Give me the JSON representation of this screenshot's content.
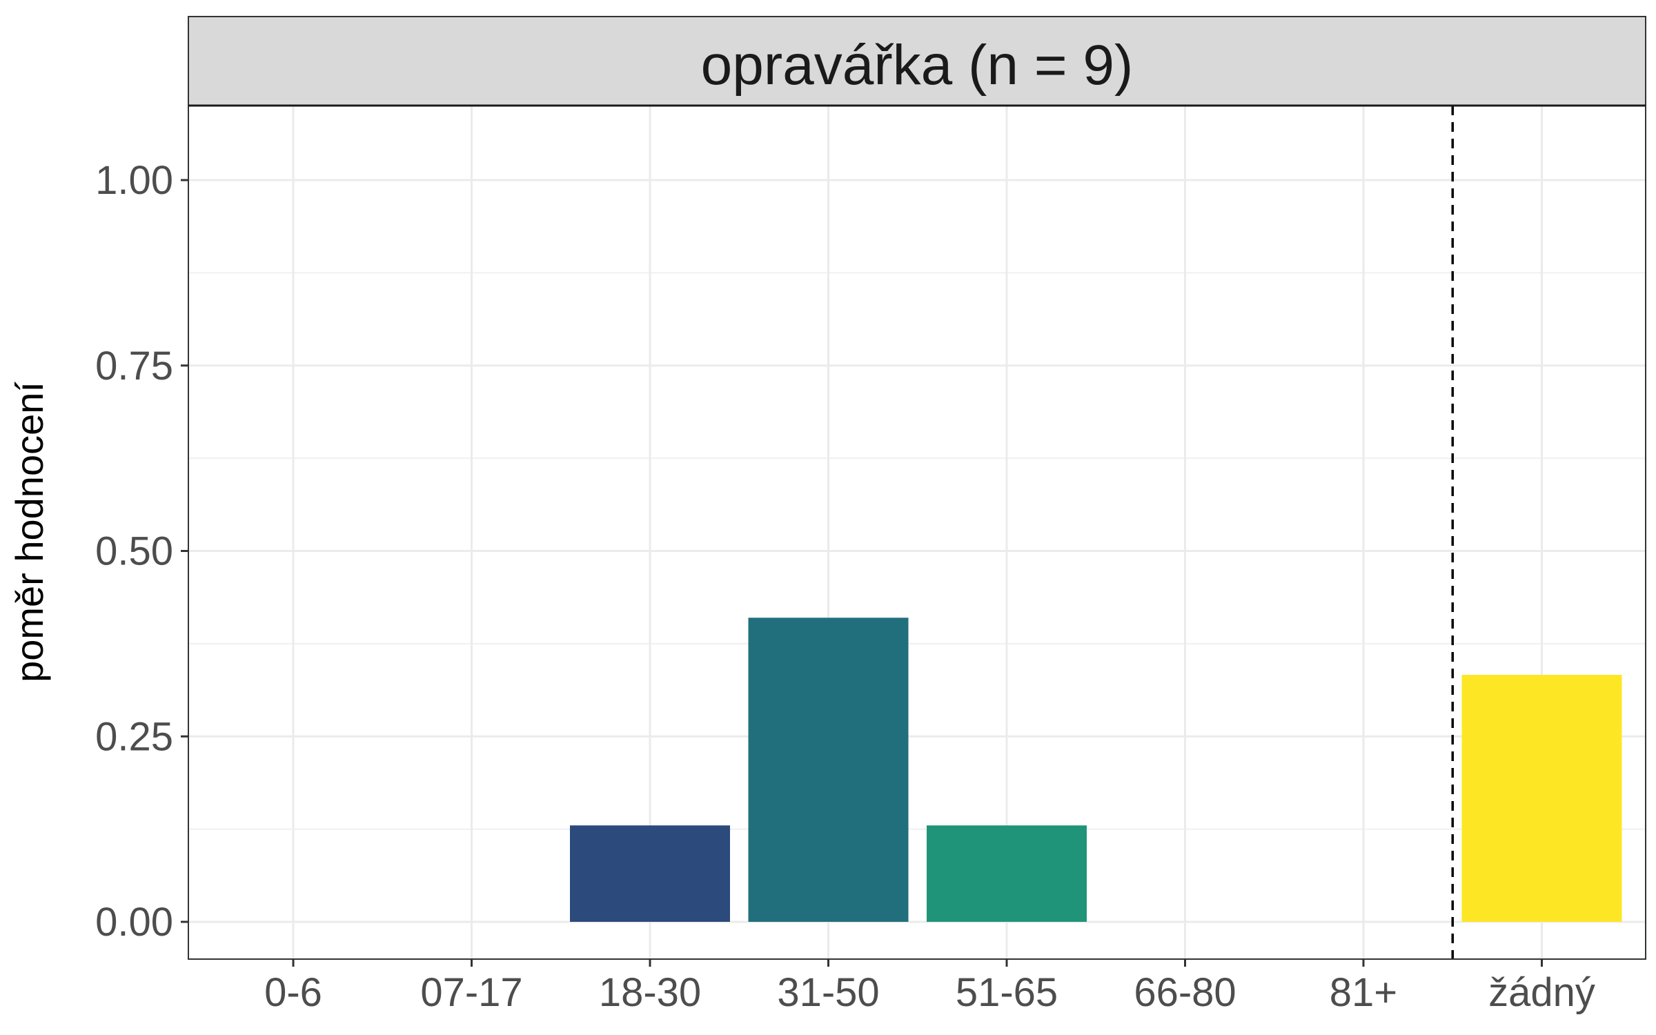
{
  "chart_data": {
    "type": "bar",
    "panel_title": "opravářka (n = 9)",
    "xlabel": "",
    "ylabel": "poměr hodnocení",
    "categories": [
      "0-6",
      "07-17",
      "18-30",
      "31-50",
      "51-65",
      "66-80",
      "81+",
      "žádný"
    ],
    "values": [
      0,
      0,
      0.13,
      0.41,
      0.13,
      0,
      0,
      0.333
    ],
    "bar_colors": [
      "#440154",
      "#46337e",
      "#2c4a7c",
      "#216f7c",
      "#209478",
      "#5ec962",
      "#addc30",
      "#fde725"
    ],
    "ylim": [
      0,
      1.1
    ],
    "yticks": [
      0.0,
      0.25,
      0.5,
      0.75,
      1.0
    ],
    "ytick_labels": [
      "0.00",
      "0.25",
      "0.50",
      "0.75",
      "1.00"
    ],
    "reference_line": {
      "style": "dashed",
      "between": [
        "81+",
        "žádný"
      ]
    },
    "grid": true,
    "legend": "none"
  }
}
